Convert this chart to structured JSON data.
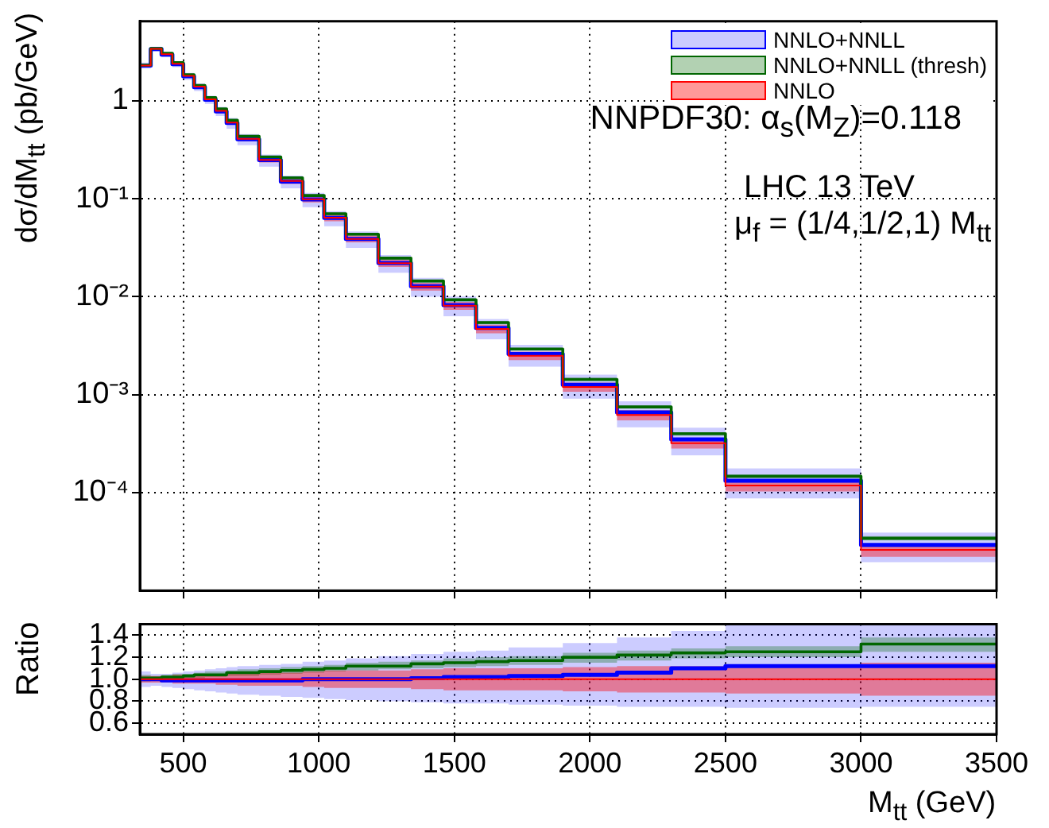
{
  "chart_data": [
    {
      "type": "step",
      "ylabel": "dσ/dM$_{tt}$ (pb/GeV)",
      "log": true,
      "grid": true,
      "legend": "top right",
      "tick_labels": "y",
      "marker": "none",
      "annotations": [
        "NNPDF30: α$_{s}$(M$_{Z}$)=0.118",
        "LHC 13 TeV",
        "μ$_{f}$ = (1/4,1/2,1) M$_{tt}$"
      ],
      "x": [
        340,
        380,
        420,
        460,
        500,
        540,
        580,
        620,
        660,
        700,
        780,
        860,
        940,
        1020,
        1100,
        1220,
        1340,
        1460,
        1580,
        1700,
        1900,
        2100,
        2300,
        2500,
        3000,
        3500
      ],
      "xlim": [
        340,
        3500
      ],
      "xticks": [
        500,
        1000,
        1500,
        2000,
        2500,
        3000,
        3500
      ],
      "ylim": [
        1e-05,
        6.5
      ],
      "yticks": [
        {
          "value": 0.0001,
          "label": "10⁻⁴"
        },
        {
          "value": 0.001,
          "label": "10⁻³"
        },
        {
          "value": 0.01,
          "label": "10⁻²"
        },
        {
          "value": 0.1,
          "label": "10⁻¹"
        },
        1
      ],
      "series": [
        {
          "name": "NNLO+NNLL",
          "color": "#0000ff",
          "values": [
            2.3,
            3.38,
            2.97,
            2.37,
            1.78,
            1.38,
            1.03,
            0.78,
            0.595,
            0.406,
            0.248,
            0.15,
            0.0986,
            0.0637,
            0.039,
            0.0221,
            0.0128,
            0.0082,
            0.0048,
            0.0026,
            0.00126,
            0.00066,
            0.00035,
            0.000132,
            2.93e-05,
            2.93e-05
          ],
          "lower": [
            2.14,
            3.2,
            2.79,
            2.21,
            1.64,
            1.26,
            0.93,
            0.7,
            0.52,
            0.353,
            0.213,
            0.128,
            0.0822,
            0.0525,
            0.0316,
            0.0176,
            0.01,
            0.00632,
            0.00367,
            0.00193,
            0.000912,
            0.000465,
            0.00024,
            8.73e-05,
            1.95e-05,
            1.95e-05
          ],
          "upper": [
            2.46,
            3.57,
            3.15,
            2.54,
            1.93,
            1.51,
            1.13,
            0.87,
            0.67,
            0.459,
            0.283,
            0.173,
            0.115,
            0.0749,
            0.0464,
            0.0266,
            0.0156,
            0.0101,
            0.00592,
            0.00323,
            0.0016,
            0.000856,
            0.000461,
            0.000177,
            3.9e-05,
            3.9e-05
          ]
        },
        {
          "name": "NNLO+NNLL (thresh)",
          "color": "#006600",
          "values": [
            2.32,
            3.43,
            3.06,
            2.46,
            1.85,
            1.44,
            1.08,
            0.83,
            0.635,
            0.435,
            0.268,
            0.164,
            0.108,
            0.0704,
            0.0435,
            0.0248,
            0.0145,
            0.0093,
            0.00545,
            0.00293,
            0.00143,
            0.00075,
            0.0004,
            0.000147,
            3.42e-05,
            3.42e-05
          ],
          "lower": [
            2.25,
            3.37,
            3.0,
            2.4,
            1.82,
            1.41,
            1.06,
            0.81,
            0.62,
            0.42,
            0.26,
            0.16,
            0.105,
            0.0685,
            0.0421,
            0.024,
            0.014,
            0.009,
            0.00526,
            0.00283,
            0.00138,
            0.000725,
            0.000381,
            0.000142,
            3.25e-05,
            3.25e-05
          ],
          "upper": [
            2.39,
            3.5,
            3.12,
            2.52,
            1.89,
            1.48,
            1.11,
            0.85,
            0.65,
            0.45,
            0.275,
            0.169,
            0.111,
            0.0723,
            0.0449,
            0.0255,
            0.0149,
            0.00964,
            0.00564,
            0.00303,
            0.00149,
            0.000781,
            0.00041,
            0.000153,
            3.59e-05,
            3.59e-05
          ]
        },
        {
          "name": "NNLO",
          "color": "#ff0000",
          "values": [
            2.3,
            3.4,
            3.0,
            2.4,
            1.8,
            1.4,
            1.04,
            0.79,
            0.6,
            0.41,
            0.25,
            0.152,
            0.099,
            0.064,
            0.039,
            0.022,
            0.0127,
            0.0081,
            0.0047,
            0.0025,
            0.0012,
            0.00062,
            0.00032,
            0.000118,
            2.6e-05,
            2.6e-05
          ],
          "lower": [
            2.23,
            3.3,
            2.91,
            2.32,
            1.73,
            1.34,
            0.99,
            0.75,
            0.57,
            0.387,
            0.235,
            0.142,
            0.092,
            0.059,
            0.0359,
            0.0201,
            0.01156,
            0.00733,
            0.00423,
            0.00225,
            0.00107,
            0.000546,
            0.000282,
            0.000103,
            2.21e-05,
            2.21e-05
          ],
          "upper": [
            2.37,
            3.5,
            3.09,
            2.48,
            1.87,
            1.46,
            1.09,
            0.83,
            0.63,
            0.433,
            0.265,
            0.162,
            0.106,
            0.069,
            0.0421,
            0.0239,
            0.01384,
            0.00887,
            0.00517,
            0.00275,
            0.00133,
            0.000694,
            0.000358,
            0.000133,
            2.99e-05,
            2.99e-05
          ]
        }
      ]
    },
    {
      "type": "step",
      "ylabel": "Ratio",
      "xlabel": "M$_{tt}$ (GeV)",
      "grid": true,
      "marker": "none",
      "x": [
        340,
        380,
        420,
        460,
        500,
        540,
        580,
        620,
        660,
        700,
        780,
        860,
        940,
        1020,
        1100,
        1220,
        1340,
        1460,
        1580,
        1700,
        1900,
        2100,
        2300,
        2500,
        3000,
        3500
      ],
      "xlim": [
        340,
        3500
      ],
      "xticks": [
        500,
        1000,
        1500,
        2000,
        2500,
        3000,
        3500
      ],
      "ylim": [
        0.5,
        1.5
      ],
      "yticks": [
        0.6,
        0.8,
        {
          "value": 1.0,
          "label": "1.0"
        },
        1.2,
        1.4
      ],
      "series": [
        {
          "color": "#0000ff",
          "values": [
            1.0,
            1.0,
            0.99,
            0.99,
            0.99,
            0.99,
            0.99,
            0.99,
            0.99,
            0.99,
            0.99,
            0.99,
            1.0,
            1.0,
            1.0,
            1.0,
            1.01,
            1.02,
            1.02,
            1.03,
            1.04,
            1.06,
            1.1,
            1.12,
            1.12,
            1.12
          ],
          "lower": [
            0.93,
            0.94,
            0.93,
            0.92,
            0.91,
            0.9,
            0.89,
            0.88,
            0.87,
            0.86,
            0.85,
            0.84,
            0.83,
            0.82,
            0.81,
            0.8,
            0.79,
            0.78,
            0.78,
            0.77,
            0.76,
            0.75,
            0.75,
            0.74,
            0.75,
            0.75
          ],
          "upper": [
            1.07,
            1.05,
            1.05,
            1.06,
            1.07,
            1.08,
            1.09,
            1.1,
            1.11,
            1.12,
            1.13,
            1.14,
            1.16,
            1.17,
            1.19,
            1.21,
            1.23,
            1.25,
            1.26,
            1.29,
            1.33,
            1.38,
            1.44,
            1.5,
            1.5,
            1.5
          ]
        },
        {
          "color": "#006600",
          "values": [
            1.01,
            1.01,
            1.02,
            1.02,
            1.03,
            1.04,
            1.04,
            1.04,
            1.06,
            1.06,
            1.07,
            1.08,
            1.09,
            1.1,
            1.12,
            1.12,
            1.14,
            1.15,
            1.16,
            1.17,
            1.2,
            1.22,
            1.24,
            1.25,
            1.32,
            1.32
          ],
          "lower": [
            0.98,
            0.99,
            1.0,
            1.0,
            1.01,
            1.01,
            1.02,
            1.02,
            1.03,
            1.03,
            1.04,
            1.05,
            1.06,
            1.07,
            1.08,
            1.09,
            1.1,
            1.11,
            1.12,
            1.13,
            1.15,
            1.17,
            1.19,
            1.2,
            1.25,
            1.25
          ],
          "upper": [
            1.04,
            1.03,
            1.04,
            1.05,
            1.05,
            1.06,
            1.07,
            1.07,
            1.08,
            1.09,
            1.1,
            1.11,
            1.12,
            1.13,
            1.15,
            1.16,
            1.17,
            1.19,
            1.2,
            1.21,
            1.24,
            1.26,
            1.28,
            1.3,
            1.38,
            1.38
          ]
        },
        {
          "color": "#ff0000",
          "values": [
            1,
            1,
            1,
            1,
            1,
            1,
            1,
            1,
            1,
            1,
            1,
            1,
            1,
            1,
            1,
            1,
            1,
            1,
            1,
            1,
            1,
            1,
            1,
            1,
            1,
            1
          ],
          "lower": [
            0.97,
            0.97,
            0.97,
            0.96,
            0.96,
            0.96,
            0.96,
            0.95,
            0.95,
            0.94,
            0.94,
            0.94,
            0.93,
            0.92,
            0.92,
            0.92,
            0.91,
            0.9,
            0.9,
            0.9,
            0.89,
            0.88,
            0.88,
            0.87,
            0.85,
            0.85
          ],
          "upper": [
            1.03,
            1.03,
            1.03,
            1.04,
            1.04,
            1.04,
            1.04,
            1.05,
            1.05,
            1.06,
            1.06,
            1.06,
            1.07,
            1.08,
            1.08,
            1.08,
            1.09,
            1.1,
            1.1,
            1.1,
            1.11,
            1.12,
            1.12,
            1.13,
            1.15,
            1.15
          ]
        }
      ]
    }
  ]
}
